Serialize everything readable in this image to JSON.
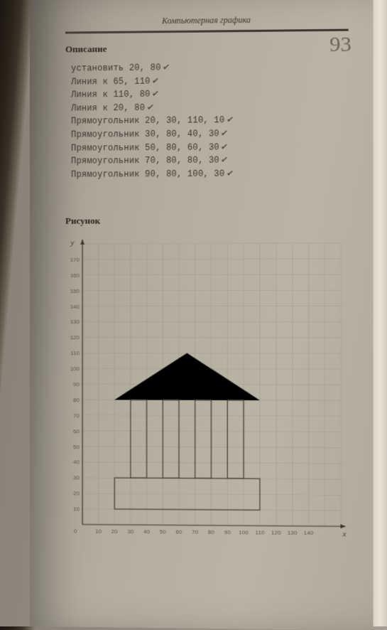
{
  "header": {
    "chapter_title": "Компьютерная графика"
  },
  "page_number": "93",
  "sections": {
    "description_title": "Описание",
    "drawing_title": "Рисунок"
  },
  "code_lines": [
    {
      "text": "установить 20, 80",
      "checked": true
    },
    {
      "text": "Линия к 65, 110",
      "checked": true
    },
    {
      "text": "Линия к 110, 80",
      "checked": true
    },
    {
      "text": "Линия к 20, 80",
      "checked": true
    },
    {
      "text": "Прямоугольник 20, 30, 110, 10",
      "checked": true
    },
    {
      "text": "Прямоугольник 30, 80, 40, 30",
      "checked": true
    },
    {
      "text": "Прямоугольник 50, 80, 60, 30",
      "checked": true
    },
    {
      "text": "Прямоугольник 70, 80, 80, 30",
      "checked": true
    },
    {
      "text": "Прямоугольник 90, 80, 100, 30",
      "checked": true
    }
  ],
  "chart": {
    "type": "grid-sketch",
    "x_axis_label": "x",
    "y_axis_label": "y",
    "grid_step": 10,
    "xlim": [
      0,
      160
    ],
    "ylim": [
      0,
      180
    ],
    "x_ticks": [
      10,
      20,
      30,
      40,
      50,
      60,
      70,
      80,
      90,
      100,
      110,
      120,
      130,
      140
    ],
    "y_ticks": [
      10,
      20,
      30,
      40,
      50,
      60,
      70,
      80,
      90,
      100,
      110,
      120,
      130,
      140,
      150,
      160,
      170
    ],
    "colors": {
      "grid": "#7a7668",
      "axis": "#3a362c",
      "sketch": "#4a4638",
      "background": "transparent"
    },
    "roof": [
      [
        20,
        80
      ],
      [
        65,
        110
      ],
      [
        110,
        80
      ],
      [
        20,
        80
      ]
    ],
    "body": [
      20,
      10,
      110,
      30
    ],
    "pickets": [
      [
        30,
        30,
        40,
        80
      ],
      [
        50,
        30,
        60,
        80
      ],
      [
        70,
        30,
        80,
        80
      ],
      [
        90,
        30,
        100,
        80
      ]
    ]
  }
}
